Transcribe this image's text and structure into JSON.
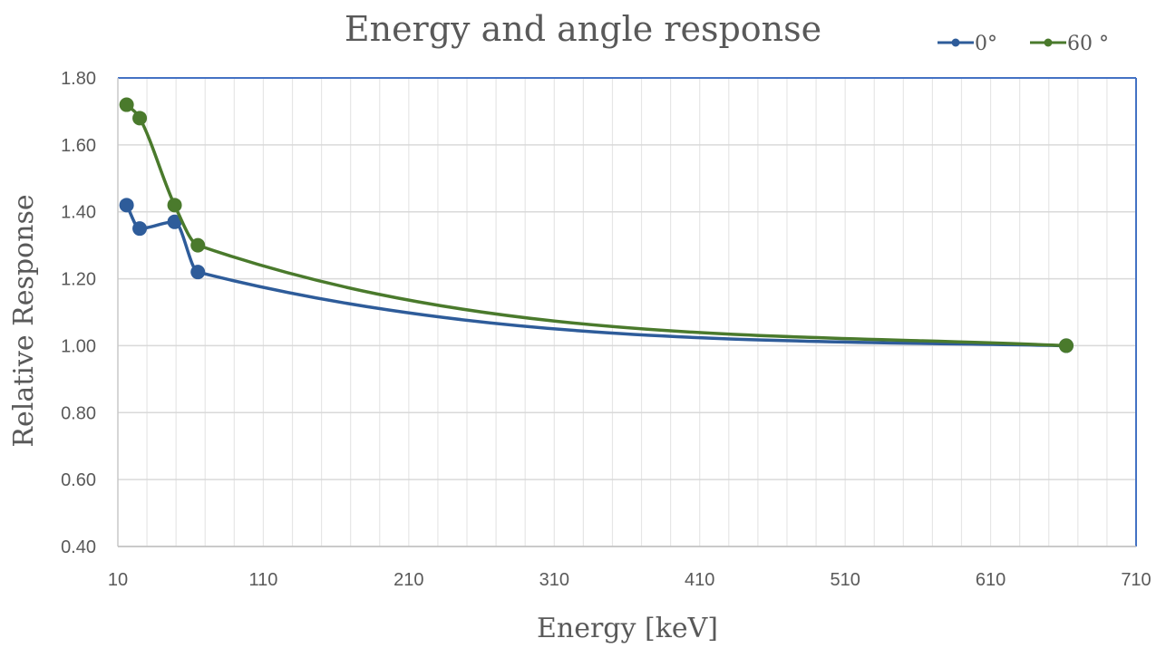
{
  "chart_data": {
    "type": "line",
    "title": "Energy and angle response",
    "xlabel": "Energy [keV]",
    "ylabel": "Relative Response",
    "xlim": [
      10,
      710
    ],
    "ylim": [
      0.4,
      1.8
    ],
    "x_ticks": [
      10,
      110,
      210,
      310,
      410,
      510,
      610,
      710
    ],
    "x_tick_labels": [
      "10",
      "110",
      "210",
      "310",
      "410",
      "510",
      "610",
      "710"
    ],
    "y_ticks": [
      0.4,
      0.6,
      0.8,
      1.0,
      1.2,
      1.4,
      1.6,
      1.8
    ],
    "y_tick_labels": [
      "0.40",
      "0.60",
      "0.80",
      "1.00",
      "1.20",
      "1.40",
      "1.60",
      "1.80"
    ],
    "grid": true,
    "smooth_lines": true,
    "legend_position": "top-right",
    "series": [
      {
        "name": "0°",
        "color": "#2e5c9a",
        "x": [
          16,
          25,
          49,
          65,
          662
        ],
        "y": [
          1.42,
          1.35,
          1.37,
          1.22,
          1.0
        ]
      },
      {
        "name": "60 °",
        "color": "#4a7a2c",
        "x": [
          16,
          25,
          49,
          65,
          662
        ],
        "y": [
          1.72,
          1.68,
          1.42,
          1.3,
          1.0
        ]
      }
    ]
  }
}
